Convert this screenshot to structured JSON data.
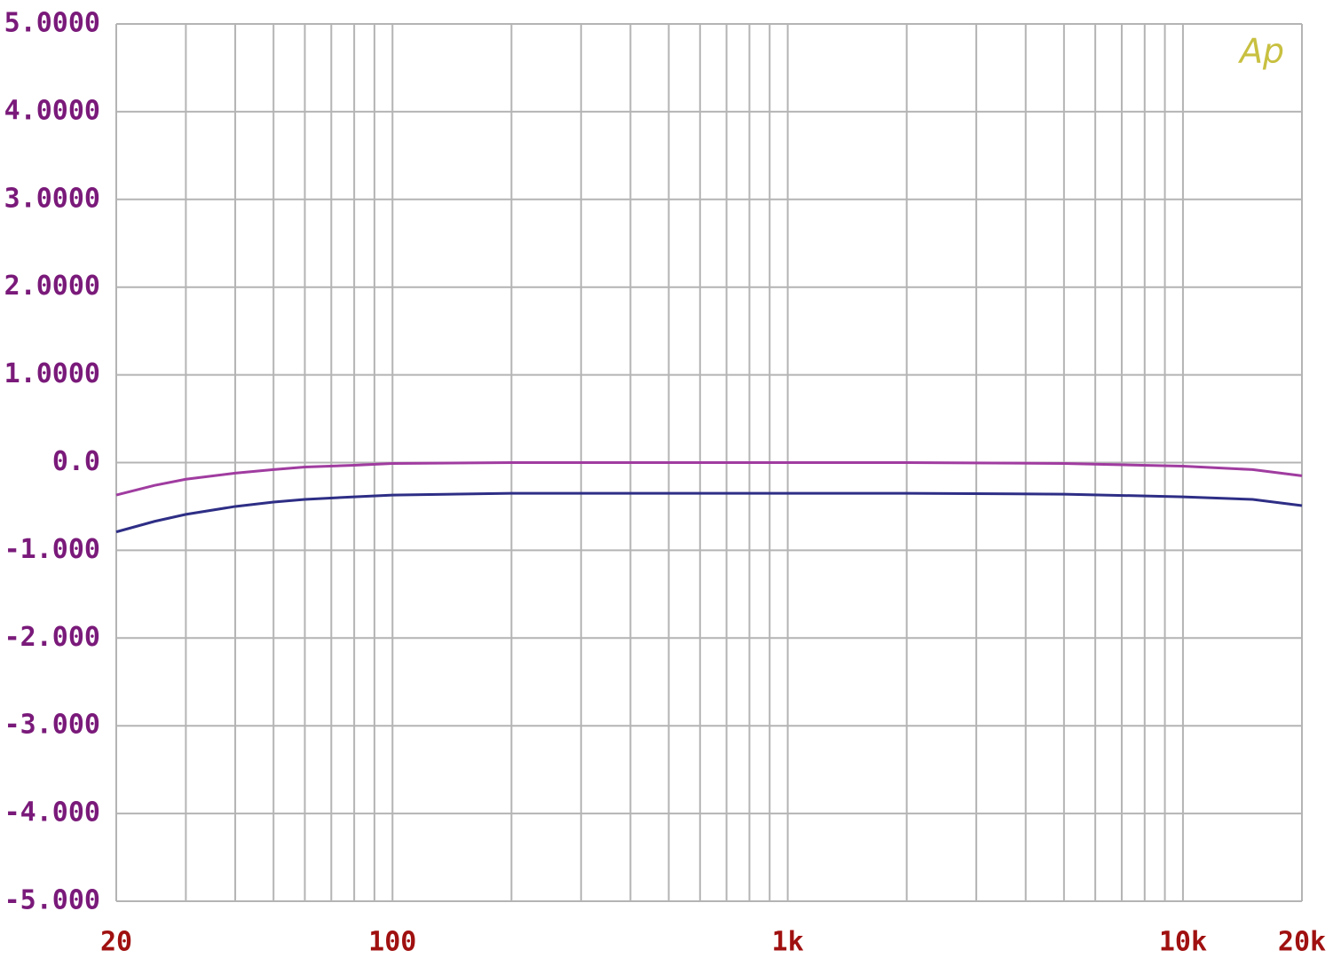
{
  "chart_data": {
    "type": "line",
    "logo": "Ap",
    "x": [
      20,
      25,
      30,
      40,
      50,
      60,
      80,
      100,
      200,
      500,
      1000,
      2000,
      5000,
      10000,
      15000,
      20000
    ],
    "series": [
      {
        "color": "#a03ca0",
        "values": [
          -0.37,
          -0.26,
          -0.19,
          -0.12,
          -0.08,
          -0.05,
          -0.03,
          -0.01,
          0,
          0,
          0,
          0,
          -0.01,
          -0.04,
          -0.08,
          -0.15
        ]
      },
      {
        "color": "#2e2e86",
        "values": [
          -0.79,
          -0.67,
          -0.59,
          -0.5,
          -0.45,
          -0.42,
          -0.39,
          -0.37,
          -0.35,
          -0.35,
          -0.35,
          -0.35,
          -0.36,
          -0.39,
          -0.42,
          -0.49
        ]
      }
    ],
    "xscale": "log",
    "xlim": [
      20,
      20000
    ],
    "xticks": [
      20,
      100,
      {
        "value": 1000,
        "label": "1k"
      },
      {
        "value": 10000,
        "label": "10k"
      },
      {
        "value": 20000,
        "label": "20k"
      }
    ],
    "xminorticks": [
      30,
      40,
      50,
      60,
      70,
      80,
      90,
      200,
      300,
      400,
      500,
      600,
      700,
      800,
      900,
      2000,
      3000,
      4000,
      5000,
      6000,
      7000,
      8000,
      9000
    ],
    "ylim": [
      -5,
      5
    ],
    "yticks": [
      {
        "value": 5,
        "label": "5.0000"
      },
      {
        "value": 4,
        "label": "4.0000"
      },
      {
        "value": 3,
        "label": "3.0000"
      },
      {
        "value": 2,
        "label": "2.0000"
      },
      {
        "value": 1,
        "label": "1.0000"
      },
      {
        "value": 0,
        "label": "0.0"
      },
      {
        "value": -1,
        "label": "-1.000"
      },
      {
        "value": -2,
        "label": "-2.000"
      },
      {
        "value": -3,
        "label": "-3.000"
      },
      {
        "value": -4,
        "label": "-4.000"
      },
      {
        "value": -5,
        "label": "-5.000"
      }
    ],
    "grid": true
  }
}
